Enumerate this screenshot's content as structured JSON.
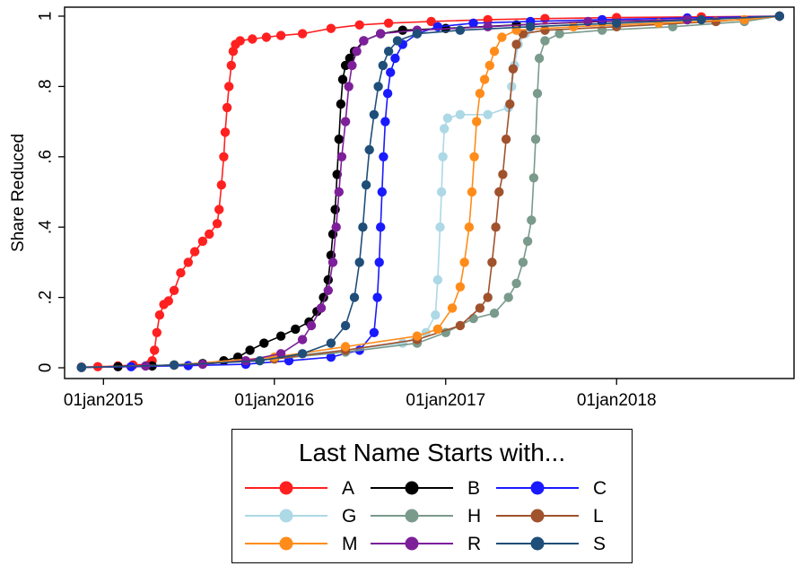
{
  "chart_data": {
    "type": "line",
    "xlabel": "",
    "ylabel": "Share Reduced",
    "xlim": [
      "2014-10-10",
      "2019-01-15"
    ],
    "ylim": [
      0,
      1
    ],
    "x_ticks": [
      {
        "date": "2015-01-01",
        "label": "01jan2015"
      },
      {
        "date": "2016-01-01",
        "label": "01jan2016"
      },
      {
        "date": "2017-01-01",
        "label": "01jan2017"
      },
      {
        "date": "2018-01-01",
        "label": "01jan2018"
      }
    ],
    "y_ticks": [
      {
        "value": 0,
        "label": "0"
      },
      {
        "value": 0.2,
        "label": ".2"
      },
      {
        "value": 0.4,
        "label": ".4"
      },
      {
        "value": 0.6,
        "label": ".6"
      },
      {
        "value": 0.8,
        "label": ".8"
      },
      {
        "value": 1,
        "label": "1"
      }
    ],
    "grid": false,
    "legend": {
      "title": "Last Name Starts with...",
      "placement": "bottom",
      "columns": 3
    },
    "series": [
      {
        "name": "A",
        "color": "#ff2020",
        "points": [
          [
            "2014-11-15",
            0.002
          ],
          [
            "2014-12-20",
            0.003
          ],
          [
            "2015-02-01",
            0.005
          ],
          [
            "2015-03-05",
            0.008
          ],
          [
            "2015-04-10",
            0.01
          ],
          [
            "2015-04-15",
            0.02
          ],
          [
            "2015-04-20",
            0.05
          ],
          [
            "2015-04-25",
            0.1
          ],
          [
            "2015-05-01",
            0.15
          ],
          [
            "2015-05-10",
            0.18
          ],
          [
            "2015-05-20",
            0.19
          ],
          [
            "2015-06-01",
            0.22
          ],
          [
            "2015-06-15",
            0.27
          ],
          [
            "2015-07-01",
            0.3
          ],
          [
            "2015-07-15",
            0.33
          ],
          [
            "2015-08-01",
            0.36
          ],
          [
            "2015-08-15",
            0.38
          ],
          [
            "2015-09-01",
            0.41
          ],
          [
            "2015-09-05",
            0.45
          ],
          [
            "2015-09-10",
            0.52
          ],
          [
            "2015-09-15",
            0.6
          ],
          [
            "2015-09-18",
            0.67
          ],
          [
            "2015-09-22",
            0.74
          ],
          [
            "2015-09-26",
            0.8
          ],
          [
            "2015-10-01",
            0.86
          ],
          [
            "2015-10-05",
            0.9
          ],
          [
            "2015-10-10",
            0.92
          ],
          [
            "2015-10-20",
            0.93
          ],
          [
            "2015-11-15",
            0.935
          ],
          [
            "2015-12-15",
            0.94
          ],
          [
            "2016-01-15",
            0.945
          ],
          [
            "2016-03-01",
            0.95
          ],
          [
            "2016-05-01",
            0.965
          ],
          [
            "2016-07-01",
            0.975
          ],
          [
            "2016-09-01",
            0.98
          ],
          [
            "2016-12-01",
            0.985
          ],
          [
            "2017-04-01",
            0.99
          ],
          [
            "2017-08-01",
            0.993
          ],
          [
            "2018-01-01",
            0.996
          ],
          [
            "2018-07-01",
            0.998
          ],
          [
            "2018-12-15",
            1.0
          ]
        ]
      },
      {
        "name": "B",
        "color": "#000000",
        "points": [
          [
            "2014-11-15",
            0.001
          ],
          [
            "2015-02-01",
            0.003
          ],
          [
            "2015-04-15",
            0.005
          ],
          [
            "2015-06-01",
            0.008
          ],
          [
            "2015-08-01",
            0.012
          ],
          [
            "2015-09-15",
            0.02
          ],
          [
            "2015-10-15",
            0.03
          ],
          [
            "2015-11-10",
            0.05
          ],
          [
            "2015-12-10",
            0.07
          ],
          [
            "2016-01-15",
            0.09
          ],
          [
            "2016-02-15",
            0.11
          ],
          [
            "2016-03-15",
            0.13
          ],
          [
            "2016-04-01",
            0.16
          ],
          [
            "2016-04-15",
            0.2
          ],
          [
            "2016-04-25",
            0.25
          ],
          [
            "2016-05-01",
            0.32
          ],
          [
            "2016-05-05",
            0.38
          ],
          [
            "2016-05-10",
            0.45
          ],
          [
            "2016-05-14",
            0.55
          ],
          [
            "2016-05-18",
            0.65
          ],
          [
            "2016-05-22",
            0.75
          ],
          [
            "2016-05-26",
            0.82
          ],
          [
            "2016-06-01",
            0.86
          ],
          [
            "2016-06-10",
            0.88
          ],
          [
            "2016-06-20",
            0.9
          ],
          [
            "2016-07-10",
            0.93
          ],
          [
            "2016-08-15",
            0.95
          ],
          [
            "2016-10-01",
            0.96
          ],
          [
            "2017-01-01",
            0.965
          ],
          [
            "2017-06-01",
            0.975
          ],
          [
            "2017-12-01",
            0.985
          ],
          [
            "2018-06-01",
            0.99
          ],
          [
            "2018-12-15",
            1.0
          ]
        ]
      },
      {
        "name": "C",
        "color": "#1a1aff",
        "points": [
          [
            "2014-11-15",
            0.001
          ],
          [
            "2015-03-01",
            0.003
          ],
          [
            "2015-07-01",
            0.006
          ],
          [
            "2015-11-01",
            0.01
          ],
          [
            "2016-02-01",
            0.02
          ],
          [
            "2016-05-01",
            0.03
          ],
          [
            "2016-07-01",
            0.05
          ],
          [
            "2016-08-01",
            0.1
          ],
          [
            "2016-08-08",
            0.2
          ],
          [
            "2016-08-12",
            0.3
          ],
          [
            "2016-08-15",
            0.4
          ],
          [
            "2016-08-18",
            0.5
          ],
          [
            "2016-08-21",
            0.6
          ],
          [
            "2016-08-25",
            0.7
          ],
          [
            "2016-08-30",
            0.78
          ],
          [
            "2016-09-05",
            0.84
          ],
          [
            "2016-09-15",
            0.88
          ],
          [
            "2016-10-01",
            0.92
          ],
          [
            "2016-11-01",
            0.95
          ],
          [
            "2016-12-15",
            0.97
          ],
          [
            "2017-03-01",
            0.98
          ],
          [
            "2017-07-01",
            0.985
          ],
          [
            "2017-12-01",
            0.99
          ],
          [
            "2018-06-01",
            0.995
          ],
          [
            "2018-12-15",
            1.0
          ]
        ]
      },
      {
        "name": "G",
        "color": "#add8e6",
        "points": [
          [
            "2014-11-15",
            0.001
          ],
          [
            "2015-06-01",
            0.008
          ],
          [
            "2016-01-01",
            0.03
          ],
          [
            "2016-06-01",
            0.05
          ],
          [
            "2016-10-01",
            0.07
          ],
          [
            "2016-11-20",
            0.1
          ],
          [
            "2016-12-10",
            0.15
          ],
          [
            "2016-12-15",
            0.25
          ],
          [
            "2016-12-20",
            0.4
          ],
          [
            "2016-12-23",
            0.5
          ],
          [
            "2016-12-26",
            0.6
          ],
          [
            "2016-12-29",
            0.68
          ],
          [
            "2017-01-05",
            0.71
          ],
          [
            "2017-02-01",
            0.72
          ],
          [
            "2017-04-01",
            0.72
          ],
          [
            "2017-05-15",
            0.74
          ],
          [
            "2017-05-22",
            0.8
          ],
          [
            "2017-05-28",
            0.86
          ],
          [
            "2017-06-05",
            0.92
          ],
          [
            "2017-06-20",
            0.95
          ],
          [
            "2017-08-01",
            0.96
          ],
          [
            "2018-01-01",
            0.97
          ],
          [
            "2018-08-01",
            0.985
          ],
          [
            "2018-12-15",
            1.0
          ]
        ]
      },
      {
        "name": "H",
        "color": "#7a9a8c",
        "points": [
          [
            "2014-11-15",
            0.001
          ],
          [
            "2015-06-01",
            0.008
          ],
          [
            "2016-01-01",
            0.025
          ],
          [
            "2016-06-01",
            0.045
          ],
          [
            "2016-11-01",
            0.07
          ],
          [
            "2017-01-01",
            0.1
          ],
          [
            "2017-03-01",
            0.14
          ],
          [
            "2017-04-15",
            0.155
          ],
          [
            "2017-05-15",
            0.2
          ],
          [
            "2017-06-01",
            0.24
          ],
          [
            "2017-06-15",
            0.3
          ],
          [
            "2017-06-25",
            0.36
          ],
          [
            "2017-07-03",
            0.42
          ],
          [
            "2017-07-08",
            0.54
          ],
          [
            "2017-07-12",
            0.65
          ],
          [
            "2017-07-16",
            0.78
          ],
          [
            "2017-07-20",
            0.88
          ],
          [
            "2017-08-01",
            0.93
          ],
          [
            "2017-09-01",
            0.95
          ],
          [
            "2017-12-01",
            0.96
          ],
          [
            "2018-05-01",
            0.97
          ],
          [
            "2018-10-01",
            0.985
          ],
          [
            "2018-12-15",
            1.0
          ]
        ]
      },
      {
        "name": "L",
        "color": "#a0522d",
        "points": [
          [
            "2014-11-15",
            0.001
          ],
          [
            "2015-06-01",
            0.008
          ],
          [
            "2016-01-01",
            0.025
          ],
          [
            "2016-06-01",
            0.05
          ],
          [
            "2016-11-01",
            0.08
          ],
          [
            "2017-02-01",
            0.12
          ],
          [
            "2017-03-15",
            0.17
          ],
          [
            "2017-04-01",
            0.2
          ],
          [
            "2017-04-10",
            0.3
          ],
          [
            "2017-04-18",
            0.4
          ],
          [
            "2017-04-25",
            0.5
          ],
          [
            "2017-05-03",
            0.55
          ],
          [
            "2017-05-10",
            0.65
          ],
          [
            "2017-05-18",
            0.75
          ],
          [
            "2017-05-25",
            0.85
          ],
          [
            "2017-06-01",
            0.92
          ],
          [
            "2017-06-15",
            0.95
          ],
          [
            "2017-08-01",
            0.96
          ],
          [
            "2018-01-01",
            0.97
          ],
          [
            "2018-08-01",
            0.985
          ],
          [
            "2018-12-15",
            1.0
          ]
        ]
      },
      {
        "name": "M",
        "color": "#ff8c1a",
        "points": [
          [
            "2014-11-15",
            0.001
          ],
          [
            "2015-06-01",
            0.008
          ],
          [
            "2016-01-01",
            0.03
          ],
          [
            "2016-06-01",
            0.06
          ],
          [
            "2016-11-01",
            0.09
          ],
          [
            "2016-12-15",
            0.11
          ],
          [
            "2017-01-15",
            0.17
          ],
          [
            "2017-02-01",
            0.23
          ],
          [
            "2017-02-10",
            0.3
          ],
          [
            "2017-02-20",
            0.4
          ],
          [
            "2017-02-26",
            0.5
          ],
          [
            "2017-03-03",
            0.6
          ],
          [
            "2017-03-08",
            0.7
          ],
          [
            "2017-03-15",
            0.78
          ],
          [
            "2017-03-25",
            0.82
          ],
          [
            "2017-04-05",
            0.86
          ],
          [
            "2017-04-15",
            0.9
          ],
          [
            "2017-05-01",
            0.94
          ],
          [
            "2017-06-01",
            0.96
          ],
          [
            "2017-10-01",
            0.97
          ],
          [
            "2018-04-01",
            0.98
          ],
          [
            "2018-10-01",
            0.99
          ],
          [
            "2018-12-15",
            1.0
          ]
        ]
      },
      {
        "name": "R",
        "color": "#7d1f9a",
        "points": [
          [
            "2014-11-15",
            0.001
          ],
          [
            "2015-04-01",
            0.005
          ],
          [
            "2015-08-01",
            0.01
          ],
          [
            "2015-11-01",
            0.02
          ],
          [
            "2016-01-15",
            0.04
          ],
          [
            "2016-03-01",
            0.08
          ],
          [
            "2016-03-20",
            0.12
          ],
          [
            "2016-04-10",
            0.17
          ],
          [
            "2016-04-25",
            0.22
          ],
          [
            "2016-05-05",
            0.3
          ],
          [
            "2016-05-12",
            0.4
          ],
          [
            "2016-05-18",
            0.5
          ],
          [
            "2016-05-24",
            0.6
          ],
          [
            "2016-06-01",
            0.7
          ],
          [
            "2016-06-08",
            0.8
          ],
          [
            "2016-06-15",
            0.86
          ],
          [
            "2016-06-25",
            0.9
          ],
          [
            "2016-07-10",
            0.93
          ],
          [
            "2016-08-15",
            0.95
          ],
          [
            "2016-11-01",
            0.96
          ],
          [
            "2017-04-01",
            0.97
          ],
          [
            "2017-11-01",
            0.985
          ],
          [
            "2018-06-01",
            0.99
          ],
          [
            "2018-12-15",
            1.0
          ]
        ]
      },
      {
        "name": "S",
        "color": "#1f4e79",
        "points": [
          [
            "2014-11-15",
            0.001
          ],
          [
            "2015-06-01",
            0.008
          ],
          [
            "2015-12-01",
            0.02
          ],
          [
            "2016-03-01",
            0.04
          ],
          [
            "2016-05-01",
            0.07
          ],
          [
            "2016-06-01",
            0.12
          ],
          [
            "2016-06-20",
            0.2
          ],
          [
            "2016-07-01",
            0.3
          ],
          [
            "2016-07-08",
            0.4
          ],
          [
            "2016-07-15",
            0.52
          ],
          [
            "2016-07-22",
            0.62
          ],
          [
            "2016-08-01",
            0.72
          ],
          [
            "2016-08-10",
            0.8
          ],
          [
            "2016-08-20",
            0.86
          ],
          [
            "2016-09-01",
            0.9
          ],
          [
            "2016-09-20",
            0.93
          ],
          [
            "2016-11-01",
            0.95
          ],
          [
            "2017-02-01",
            0.96
          ],
          [
            "2017-07-01",
            0.97
          ],
          [
            "2018-01-01",
            0.98
          ],
          [
            "2018-07-01",
            0.99
          ],
          [
            "2018-12-15",
            1.0
          ]
        ]
      }
    ]
  }
}
